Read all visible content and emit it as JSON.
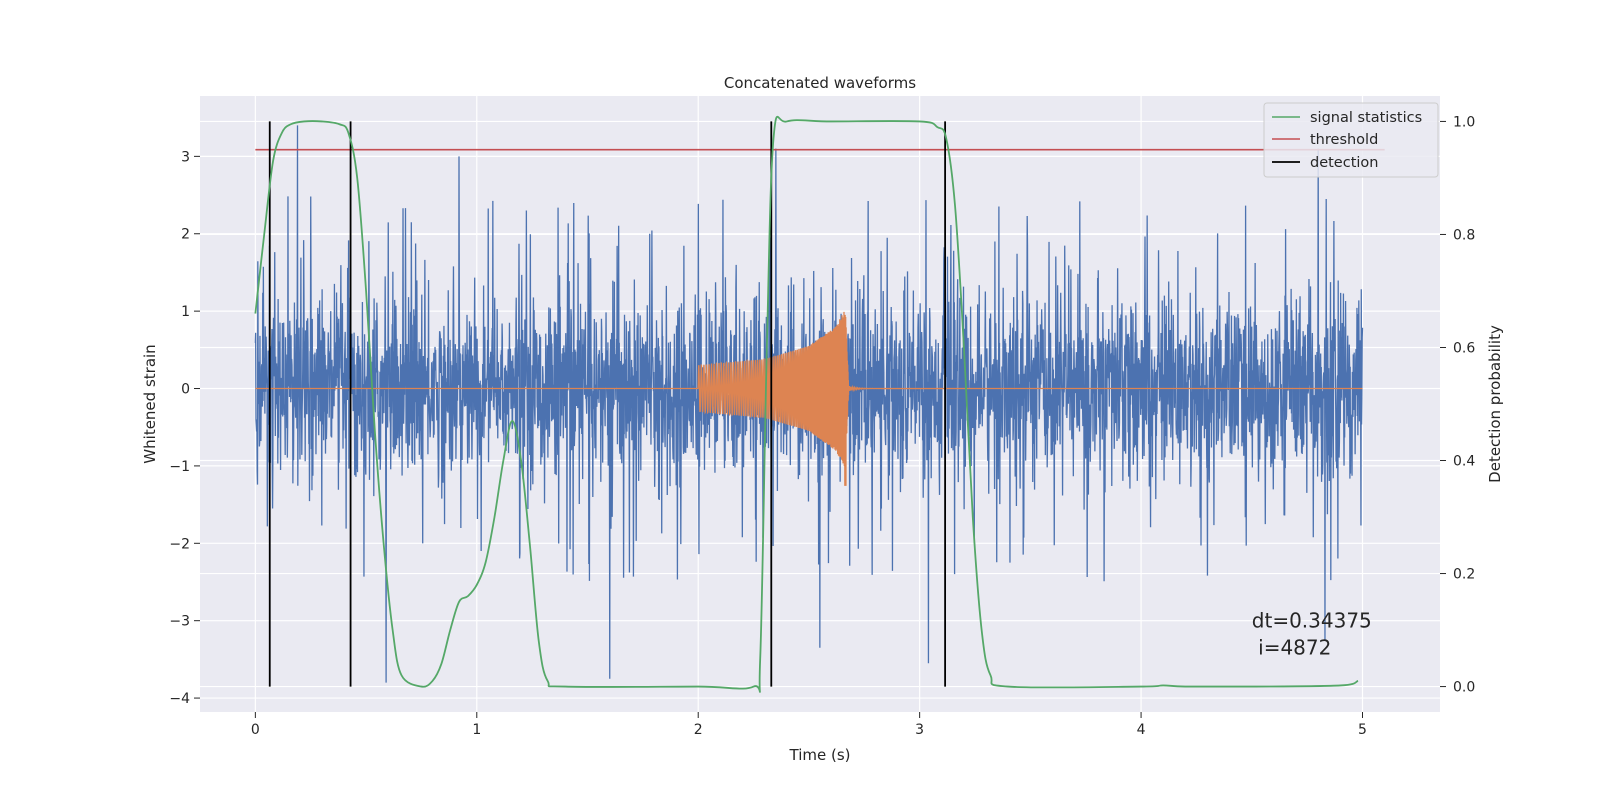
{
  "chart_data": {
    "type": "line",
    "title": "Concatenated waveforms",
    "xlabel": "Time (s)",
    "ylabel_left": "Whitened strain",
    "ylabel_right": "Detection probability",
    "xlim": [
      -0.25,
      5.35
    ],
    "ylim_left": [
      -4.18,
      3.78
    ],
    "ylim_right": [
      -0.045,
      1.045
    ],
    "xticks": [
      0,
      1,
      2,
      3,
      4,
      5
    ],
    "xtick_labels": [
      "0",
      "1",
      "2",
      "3",
      "4",
      "5"
    ],
    "yticks_left": [
      -4,
      -3,
      -2,
      -1,
      0,
      1,
      2,
      3
    ],
    "ytick_labels_left": [
      "−4",
      "−3",
      "−2",
      "−1",
      "0",
      "1",
      "2",
      "3"
    ],
    "yticks_right": [
      0.0,
      0.2,
      0.4,
      0.6,
      0.8,
      1.0
    ],
    "ytick_labels_right": [
      "0.0",
      "0.2",
      "0.4",
      "0.6",
      "0.8",
      "1.0"
    ],
    "grid": true,
    "legend_position": "top-right",
    "series": [
      {
        "name": "",
        "axis": "left",
        "kind": "noise",
        "color": "#4c72b0",
        "x_range": [
          0,
          5
        ],
        "core_amplitude": 0.9,
        "typical_peak_range": [
          -2.3,
          2.5
        ],
        "extremes": [
          {
            "x": 0.19,
            "y": 3.4
          },
          {
            "x": 0.92,
            "y": 3.0
          },
          {
            "x": 2.35,
            "y": 3.1
          },
          {
            "x": 4.8,
            "y": 3.1
          },
          {
            "x": 0.59,
            "y": -3.8
          },
          {
            "x": 1.6,
            "y": -3.75
          },
          {
            "x": 3.04,
            "y": -3.55
          },
          {
            "x": 2.55,
            "y": -3.35
          },
          {
            "x": 4.83,
            "y": -3.25
          }
        ]
      },
      {
        "name": "",
        "axis": "left",
        "kind": "chirp",
        "color": "#dd8452",
        "baseline": 0,
        "chirp_x": [
          2.0,
          2.68
        ],
        "envelope": [
          {
            "x": 2.0,
            "a": 0.3
          },
          {
            "x": 2.3,
            "a": 0.38
          },
          {
            "x": 2.5,
            "a": 0.55
          },
          {
            "x": 2.62,
            "a": 0.8
          },
          {
            "x": 2.66,
            "a": 1.0
          }
        ],
        "chirp_min": -1.25
      },
      {
        "name": "signal statistics",
        "axis": "right",
        "color": "#55a868",
        "x": [
          0.0,
          0.04,
          0.08,
          0.12,
          0.16,
          0.22,
          0.3,
          0.38,
          0.42,
          0.46,
          0.5,
          0.54,
          0.58,
          0.62,
          0.66,
          0.75,
          0.8,
          0.84,
          0.88,
          0.92,
          0.96,
          1.0,
          1.04,
          1.08,
          1.12,
          1.16,
          1.2,
          1.24,
          1.28,
          1.32,
          1.4,
          2.0,
          2.25,
          2.28,
          2.31,
          2.34,
          2.4,
          2.6,
          3.0,
          3.08,
          3.12,
          3.16,
          3.2,
          3.24,
          3.28,
          3.32,
          3.4,
          4.0,
          4.1,
          4.2,
          4.5,
          4.9,
          4.98
        ],
        "y": [
          0.66,
          0.8,
          0.93,
          0.98,
          0.995,
          1.0,
          1.0,
          0.995,
          0.98,
          0.9,
          0.7,
          0.45,
          0.25,
          0.1,
          0.02,
          0.0,
          0.01,
          0.04,
          0.1,
          0.15,
          0.16,
          0.18,
          0.22,
          0.3,
          0.4,
          0.47,
          0.4,
          0.25,
          0.08,
          0.01,
          0.0,
          0.0,
          0.0,
          0.05,
          0.6,
          0.97,
          1.0,
          1.0,
          1.0,
          0.99,
          0.97,
          0.85,
          0.6,
          0.3,
          0.1,
          0.02,
          0.0,
          0.0,
          0.002,
          0.0,
          0.0,
          0.002,
          0.01
        ]
      },
      {
        "name": "threshold",
        "axis": "right",
        "color": "#c44e52",
        "x": [
          0,
          5.1
        ],
        "y": [
          0.95,
          0.95
        ]
      }
    ],
    "detections": {
      "name": "detection",
      "color": "#000000",
      "x": [
        0.065,
        0.43,
        2.33,
        3.115
      ],
      "ymin": 0.0,
      "ymax": 1.0
    },
    "annotation": {
      "lines": [
        "dt=0.34375",
        " i=4872"
      ],
      "x": 4.5,
      "y_left": -3.0
    }
  }
}
